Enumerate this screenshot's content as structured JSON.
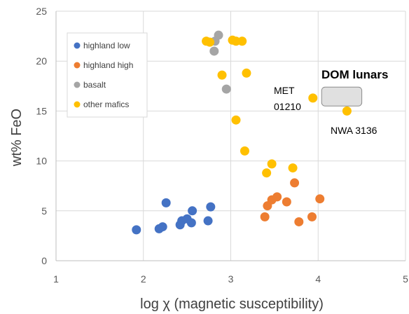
{
  "chart_data": {
    "type": "scatter",
    "title": "",
    "xlabel": "log χ (magnetic susceptibility)",
    "ylabel": "wt% FeO",
    "xlim": [
      1,
      5
    ],
    "ylim": [
      0,
      25
    ],
    "x_ticks": [
      "1",
      "2",
      "3",
      "4",
      "5"
    ],
    "y_ticks": [
      "0",
      "5",
      "10",
      "15",
      "20",
      "25"
    ],
    "grid": true,
    "legend_position": "top-left",
    "series": [
      {
        "name": "highland low",
        "color": "#4472C4",
        "points": [
          {
            "x": 1.92,
            "y": 3.1
          },
          {
            "x": 2.18,
            "y": 3.2
          },
          {
            "x": 2.22,
            "y": 3.4
          },
          {
            "x": 2.26,
            "y": 5.8
          },
          {
            "x": 2.42,
            "y": 3.6
          },
          {
            "x": 2.44,
            "y": 4.0
          },
          {
            "x": 2.5,
            "y": 4.2
          },
          {
            "x": 2.55,
            "y": 3.8
          },
          {
            "x": 2.56,
            "y": 5.0
          },
          {
            "x": 2.74,
            "y": 4.0
          },
          {
            "x": 2.77,
            "y": 5.4
          }
        ]
      },
      {
        "name": "highland high",
        "color": "#ED7D31",
        "points": [
          {
            "x": 3.39,
            "y": 4.4
          },
          {
            "x": 3.42,
            "y": 5.5
          },
          {
            "x": 3.47,
            "y": 6.1
          },
          {
            "x": 3.53,
            "y": 6.4
          },
          {
            "x": 3.64,
            "y": 5.9
          },
          {
            "x": 3.73,
            "y": 7.8
          },
          {
            "x": 3.78,
            "y": 3.9
          },
          {
            "x": 3.93,
            "y": 4.4
          },
          {
            "x": 4.02,
            "y": 6.2
          }
        ]
      },
      {
        "name": "basalt",
        "color": "#A5A5A5",
        "points": [
          {
            "x": 2.81,
            "y": 21.0
          },
          {
            "x": 2.82,
            "y": 22.0
          },
          {
            "x": 2.86,
            "y": 22.6
          },
          {
            "x": 2.95,
            "y": 17.2
          }
        ]
      },
      {
        "name": "other mafics",
        "color": "#FFC000",
        "points": [
          {
            "x": 2.72,
            "y": 22.0
          },
          {
            "x": 2.76,
            "y": 21.9
          },
          {
            "x": 2.9,
            "y": 18.6
          },
          {
            "x": 3.02,
            "y": 22.1
          },
          {
            "x": 3.06,
            "y": 22.0
          },
          {
            "x": 3.13,
            "y": 22.0
          },
          {
            "x": 3.18,
            "y": 18.8
          },
          {
            "x": 3.06,
            "y": 14.1
          },
          {
            "x": 3.16,
            "y": 11.0
          },
          {
            "x": 3.41,
            "y": 8.8
          },
          {
            "x": 3.47,
            "y": 9.7
          },
          {
            "x": 3.71,
            "y": 9.3
          },
          {
            "x": 3.94,
            "y": 16.3
          },
          {
            "x": 4.33,
            "y": 15.0
          }
        ]
      }
    ],
    "annotations": {
      "met_line1": "MET",
      "met_line2": "01210",
      "nwa": "NWA 3136",
      "dom": "DOM lunars"
    },
    "dom_region": {
      "x_min": 4.04,
      "x_max": 4.5,
      "y_min": 15.5,
      "y_max": 17.4
    }
  }
}
